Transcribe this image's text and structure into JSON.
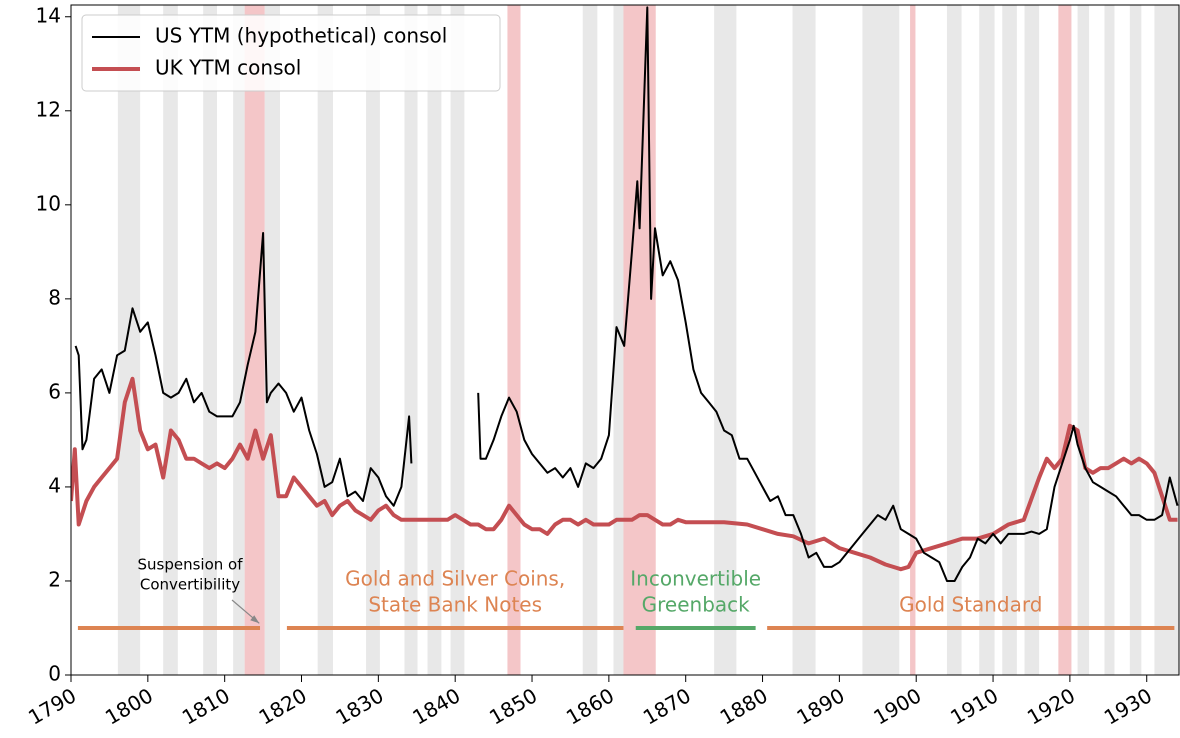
{
  "chart_data": {
    "type": "line",
    "xlim": [
      1790,
      1934.2
    ],
    "ylim": [
      0,
      14.25
    ],
    "xticks": [
      1790,
      1800,
      1810,
      1820,
      1830,
      1840,
      1850,
      1860,
      1870,
      1880,
      1890,
      1900,
      1910,
      1920,
      1930
    ],
    "yticks": [
      0,
      2,
      4,
      6,
      8,
      10,
      12,
      14
    ],
    "legend": "upper left",
    "series": [
      {
        "name": "US YTM (hypothetical) consol",
        "color": "#000000",
        "x": [
          1790.6,
          1791,
          1791.5,
          1792,
          1793,
          1794,
          1795,
          1796,
          1797,
          1798,
          1799,
          1800,
          1801,
          1802,
          1803,
          1804,
          1805,
          1806,
          1807,
          1808,
          1809,
          1810,
          1811,
          1812,
          1813,
          1814,
          1815,
          1815.5,
          1816,
          1817,
          1818,
          1819,
          1820,
          1821,
          1822,
          1823,
          1824,
          1825,
          1826,
          1827,
          1828,
          1829,
          1830,
          1831,
          1832,
          1833,
          1834,
          1834.3,
          1838,
          1843,
          1843.3,
          1844,
          1845,
          1846,
          1847,
          1848,
          1849,
          1850,
          1851,
          1852,
          1853,
          1854,
          1855,
          1856,
          1857,
          1858,
          1859,
          1860,
          1861,
          1862,
          1863,
          1863.7,
          1864,
          1865,
          1865.5,
          1866,
          1867,
          1868,
          1869,
          1870,
          1871,
          1872,
          1873,
          1874,
          1875,
          1876,
          1877,
          1878,
          1879,
          1880,
          1881,
          1882,
          1883,
          1884,
          1885,
          1886,
          1887,
          1888,
          1889,
          1890,
          1891,
          1892,
          1893,
          1894,
          1895,
          1896,
          1897,
          1898,
          1899,
          1900,
          1901,
          1902,
          1903,
          1904,
          1905,
          1906,
          1907,
          1908,
          1909,
          1910,
          1911,
          1912,
          1913,
          1914,
          1915,
          1916,
          1917,
          1918,
          1919,
          1920,
          1920.5,
          1921,
          1922,
          1923,
          1924,
          1925,
          1926,
          1927,
          1928,
          1929,
          1930,
          1931,
          1932,
          1933,
          1934
        ],
        "values": [
          7.0,
          6.8,
          4.8,
          5.0,
          6.3,
          6.5,
          6.0,
          6.8,
          6.9,
          7.8,
          7.3,
          7.5,
          6.8,
          6.0,
          5.9,
          6.0,
          6.3,
          5.8,
          6.0,
          5.6,
          5.5,
          5.5,
          5.5,
          5.8,
          6.6,
          7.3,
          9.4,
          5.8,
          6.0,
          6.2,
          6.0,
          5.6,
          5.9,
          5.2,
          4.7,
          4.0,
          4.1,
          4.6,
          3.8,
          3.9,
          3.7,
          4.4,
          4.2,
          3.8,
          3.6,
          4.0,
          5.5,
          4.5,
          null,
          6.0,
          4.6,
          4.6,
          5.0,
          5.5,
          5.9,
          5.6,
          5.0,
          4.7,
          4.5,
          4.3,
          4.4,
          4.2,
          4.4,
          4.0,
          4.5,
          4.4,
          4.6,
          5.1,
          7.4,
          7.0,
          9.0,
          10.5,
          9.5,
          14.2,
          8.0,
          9.5,
          8.5,
          8.8,
          8.4,
          7.5,
          6.5,
          6.0,
          5.8,
          5.6,
          5.2,
          5.1,
          4.6,
          4.6,
          4.3,
          4.0,
          3.7,
          3.8,
          3.4,
          3.4,
          3.0,
          2.5,
          2.6,
          2.3,
          2.3,
          2.4,
          2.6,
          2.8,
          3.0,
          3.2,
          3.4,
          3.3,
          3.6,
          3.1,
          3.0,
          2.9,
          2.6,
          2.5,
          2.4,
          2.0,
          2.0,
          2.3,
          2.5,
          2.9,
          2.8,
          3.0,
          2.8,
          3.0,
          3.0,
          3.0,
          3.05,
          3.0,
          3.1,
          4.0,
          4.5,
          5.0,
          5.3,
          4.9,
          4.4,
          4.1,
          4.0,
          3.9,
          3.8,
          3.6,
          3.4,
          3.4,
          3.3,
          3.3,
          3.4,
          4.2,
          3.6
        ]
      },
      {
        "name": "UK YTM consol",
        "color": "#c44e52",
        "x": [
          1790,
          1790.5,
          1791,
          1792,
          1793,
          1794,
          1795,
          1796,
          1797,
          1798,
          1799,
          1800,
          1801,
          1802,
          1803,
          1804,
          1805,
          1806,
          1807,
          1808,
          1809,
          1810,
          1811,
          1812,
          1813,
          1814,
          1815,
          1816,
          1817,
          1818,
          1819,
          1820,
          1821,
          1822,
          1823,
          1824,
          1825,
          1826,
          1827,
          1828,
          1829,
          1830,
          1831,
          1832,
          1833,
          1834,
          1835,
          1836,
          1837,
          1838,
          1839,
          1840,
          1841,
          1842,
          1843,
          1844,
          1845,
          1846,
          1847,
          1848,
          1849,
          1850,
          1851,
          1852,
          1853,
          1854,
          1855,
          1856,
          1857,
          1858,
          1859,
          1860,
          1861,
          1862,
          1863,
          1864,
          1865,
          1866,
          1867,
          1868,
          1869,
          1870,
          1875,
          1878,
          1880,
          1882,
          1884,
          1886,
          1888,
          1890,
          1892,
          1894,
          1896,
          1898,
          1899,
          1900,
          1902,
          1904,
          1906,
          1908,
          1910,
          1912,
          1914,
          1916,
          1917,
          1918,
          1919,
          1920,
          1921,
          1922,
          1923,
          1924,
          1925,
          1926,
          1927,
          1928,
          1929,
          1930,
          1931,
          1932,
          1933,
          1934
        ],
        "values": [
          3.7,
          4.8,
          3.2,
          3.7,
          4.0,
          4.2,
          4.4,
          4.6,
          5.8,
          6.3,
          5.2,
          4.8,
          4.9,
          4.2,
          5.2,
          5.0,
          4.6,
          4.6,
          4.5,
          4.4,
          4.5,
          4.4,
          4.6,
          4.9,
          4.6,
          5.2,
          4.6,
          5.1,
          3.8,
          3.8,
          4.2,
          4.0,
          3.8,
          3.6,
          3.7,
          3.4,
          3.6,
          3.7,
          3.5,
          3.4,
          3.3,
          3.5,
          3.6,
          3.4,
          3.3,
          3.3,
          3.3,
          3.3,
          3.3,
          3.3,
          3.3,
          3.4,
          3.3,
          3.2,
          3.2,
          3.1,
          3.1,
          3.3,
          3.6,
          3.4,
          3.2,
          3.1,
          3.1,
          3.0,
          3.2,
          3.3,
          3.3,
          3.2,
          3.3,
          3.2,
          3.2,
          3.2,
          3.3,
          3.3,
          3.3,
          3.4,
          3.4,
          3.3,
          3.2,
          3.2,
          3.3,
          3.25,
          3.25,
          3.2,
          3.1,
          3.0,
          2.95,
          2.8,
          2.9,
          2.7,
          2.6,
          2.5,
          2.35,
          2.25,
          2.3,
          2.6,
          2.7,
          2.8,
          2.9,
          2.9,
          3.0,
          3.2,
          3.3,
          4.2,
          4.6,
          4.4,
          4.6,
          5.3,
          5.2,
          4.4,
          4.3,
          4.4,
          4.4,
          4.5,
          4.6,
          4.5,
          4.6,
          4.5,
          4.3,
          3.8,
          3.3,
          3.3
        ]
      }
    ],
    "recessions": {
      "color": "#e8e8e8",
      "spans": [
        [
          1796.1,
          1799.0
        ],
        [
          1802,
          1803.9
        ],
        [
          1807.2,
          1809
        ],
        [
          1811.1,
          1812.6
        ],
        [
          1815.2,
          1817.2
        ],
        [
          1822.1,
          1824.1
        ],
        [
          1828.4,
          1830.2
        ],
        [
          1833.4,
          1835.1
        ],
        [
          1836.4,
          1838.2
        ],
        [
          1839.4,
          1841.2
        ],
        [
          1856.6,
          1858.5
        ],
        [
          1860.6,
          1862
        ],
        [
          1864.6,
          1866
        ],
        [
          1873.7,
          1876.6
        ],
        [
          1883.9,
          1886.9
        ],
        [
          1893,
          1897.8
        ],
        [
          1904,
          1905.9
        ],
        [
          1908.2,
          1910.2
        ],
        [
          1911.2,
          1913.1
        ],
        [
          1914.1,
          1916
        ],
        [
          1921,
          1922.5
        ],
        [
          1924.5,
          1925.8
        ],
        [
          1927.8,
          1929.3
        ],
        [
          1931,
          1934.2
        ]
      ]
    },
    "wars": {
      "color": "#f4c6c8",
      "spans": [
        [
          1812.6,
          1815.2
        ],
        [
          1846.8,
          1848.5
        ],
        [
          1861.9,
          1866.1
        ],
        [
          1899.2,
          1899.9
        ],
        [
          1918.5,
          1920.2
        ]
      ]
    },
    "regimes": [
      {
        "label": [],
        "start": 1790.9,
        "end": 1814.6,
        "y": 1,
        "color": "#dd8452"
      },
      {
        "label": [
          "Gold and Silver Coins,",
          "State Bank Notes"
        ],
        "start": 1818.1,
        "end": 1861.9,
        "y": 1,
        "color": "#dd8452"
      },
      {
        "label": [
          "Inconvertible",
          "Greenback"
        ],
        "start": 1863.5,
        "end": 1879.1,
        "y": 1,
        "color": "#55a868"
      },
      {
        "label": [
          "Gold Standard"
        ],
        "start": 1880.6,
        "end": 1933.6,
        "y": 1,
        "color": "#dd8452"
      }
    ],
    "annotation": {
      "text": [
        "Suspension of",
        "Convertibility"
      ],
      "x": 1814.5,
      "y": 1.1
    }
  }
}
